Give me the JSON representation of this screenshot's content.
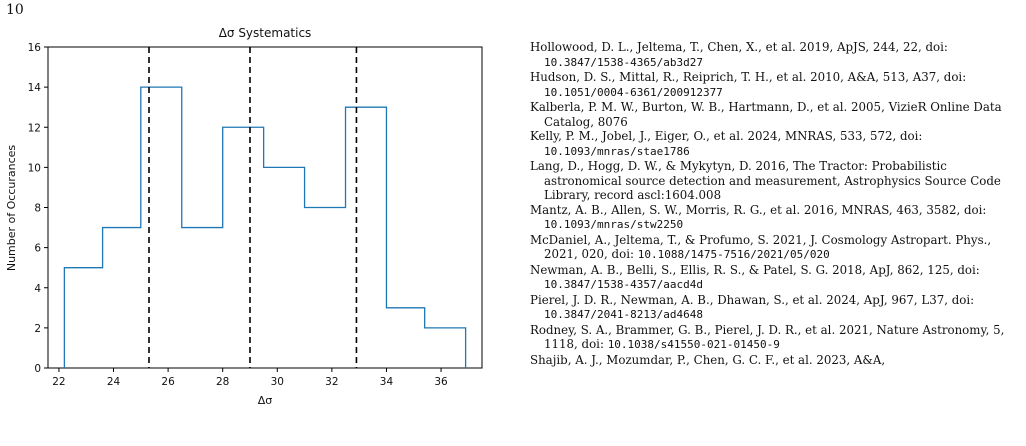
{
  "page": {
    "number": "10"
  },
  "chart_data": {
    "type": "histogram",
    "title": "Δσ Systematics",
    "xlabel": "Δσ",
    "ylabel": "Number of Occurances",
    "xlim": [
      21.6,
      37.5
    ],
    "ylim": [
      0,
      16
    ],
    "xticks": [
      22,
      24,
      26,
      28,
      30,
      32,
      34,
      36
    ],
    "yticks": [
      0,
      2,
      4,
      6,
      8,
      10,
      12,
      14,
      16
    ],
    "bin_edges": [
      22.2,
      23.6,
      25.0,
      26.5,
      28.0,
      29.5,
      31.0,
      32.5,
      34.0,
      35.4,
      36.9
    ],
    "counts": [
      5,
      7,
      14,
      7,
      12,
      10,
      8,
      13,
      3,
      2
    ],
    "vlines": [
      25.3,
      29.0,
      32.9
    ],
    "line_color": "#1f77b4",
    "vline_color": "#000000"
  },
  "references": [
    {
      "text": "Hollowood, D. L., Jeltema, T., Chen, X., et al. 2019, ApJS, 244, 22, doi: ",
      "doi": "10.3847/1538-4365/ab3d27"
    },
    {
      "text": "Hudson, D. S., Mittal, R., Reiprich, T. H., et al. 2010, A&A, 513, A37, doi: ",
      "doi": "10.1051/0004-6361/200912377"
    },
    {
      "text": "Kalberla, P. M. W., Burton, W. B., Hartmann, D., et al. 2005, VizieR Online Data Catalog, 8076",
      "doi": ""
    },
    {
      "text": "Kelly, P. M., Jobel, J., Eiger, O., et al. 2024, MNRAS, 533, 572, doi: ",
      "doi": "10.1093/mnras/stae1786"
    },
    {
      "text": "Lang, D., Hogg, D. W., & Mykytyn, D. 2016, The Tractor: Probabilistic astronomical source detection and measurement, Astrophysics Source Code Library, record ascl:1604.008",
      "doi": ""
    },
    {
      "text": "Mantz, A. B., Allen, S. W., Morris, R. G., et al. 2016, MNRAS, 463, 3582, doi: ",
      "doi": "10.1093/mnras/stw2250"
    },
    {
      "text": "McDaniel, A., Jeltema, T., & Profumo, S. 2021, J. Cosmology Astropart. Phys., 2021, 020, doi: ",
      "doi": "10.1088/1475-7516/2021/05/020"
    },
    {
      "text": "Newman, A. B., Belli, S., Ellis, R. S., & Patel, S. G. 2018, ApJ, 862, 125, doi: ",
      "doi": "10.3847/1538-4357/aacd4d"
    },
    {
      "text": "Pierel, J. D. R., Newman, A. B., Dhawan, S., et al. 2024, ApJ, 967, L37, doi: ",
      "doi": "10.3847/2041-8213/ad4648"
    },
    {
      "text": "Rodney, S. A., Brammer, G. B., Pierel, J. D. R., et al. 2021, Nature Astronomy, 5, 1118, doi: ",
      "doi": "10.1038/s41550-021-01450-9"
    },
    {
      "text": "Shajib, A. J., Mozumdar, P., Chen, G. C. F., et al. 2023, A&A,",
      "doi": ""
    }
  ]
}
